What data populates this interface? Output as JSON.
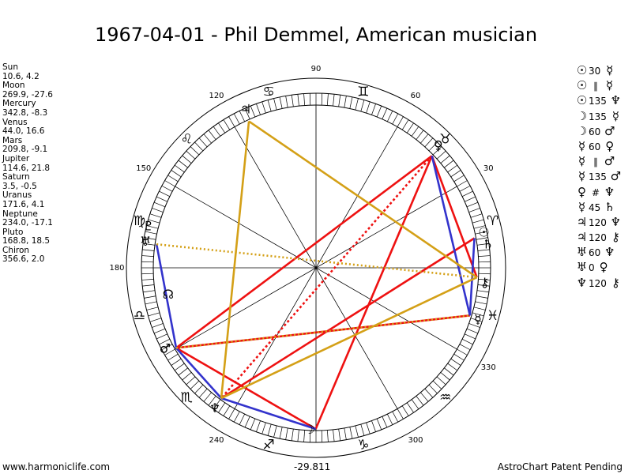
{
  "title": "1967-04-01 - Phil Demmel, American musician",
  "planets": [
    {
      "name": "Sun",
      "coords": "10.6, 4.2"
    },
    {
      "name": "Moon",
      "coords": "269.9, -27.6"
    },
    {
      "name": "Mercury",
      "coords": "342.8, -8.3"
    },
    {
      "name": "Venus",
      "coords": "44.0, 16.6"
    },
    {
      "name": "Mars",
      "coords": "209.8, -9.1"
    },
    {
      "name": "Jupiter",
      "coords": "114.6, 21.8"
    },
    {
      "name": "Saturn",
      "coords": "3.5, -0.5"
    },
    {
      "name": "Uranus",
      "coords": "171.6, 4.1"
    },
    {
      "name": "Neptune",
      "coords": "234.0, -17.1"
    },
    {
      "name": "Pluto",
      "coords": "168.8, 18.5"
    },
    {
      "name": "Chiron",
      "coords": "356.6, 2.0"
    }
  ],
  "aspects": [
    {
      "g1": "☉",
      "sym": "",
      "ang": "30",
      "g2": "☿"
    },
    {
      "g1": "☉",
      "sym": "∥",
      "ang": "",
      "g2": "☿"
    },
    {
      "g1": "☉",
      "sym": "",
      "ang": "135",
      "g2": "♆"
    },
    {
      "g1": "☽",
      "sym": "",
      "ang": "135",
      "g2": "☿"
    },
    {
      "g1": "☽",
      "sym": "",
      "ang": "60",
      "g2": "♂"
    },
    {
      "g1": "☿",
      "sym": "",
      "ang": "60",
      "g2": "♀"
    },
    {
      "g1": "☿",
      "sym": "∥",
      "ang": "",
      "g2": "♂"
    },
    {
      "g1": "☿",
      "sym": "",
      "ang": "135",
      "g2": "♂"
    },
    {
      "g1": "♀",
      "sym": "#",
      "ang": "",
      "g2": "♆"
    },
    {
      "g1": "☿",
      "sym": "",
      "ang": "45",
      "g2": "♄"
    },
    {
      "g1": "♃",
      "sym": "",
      "ang": "120",
      "g2": "♆"
    },
    {
      "g1": "♃",
      "sym": "",
      "ang": "120",
      "g2": "⚷"
    },
    {
      "g1": "♅",
      "sym": "",
      "ang": "60",
      "g2": "♆"
    },
    {
      "g1": "♅",
      "sym": "",
      "ang": "0",
      "g2": "♀"
    },
    {
      "g1": "♆",
      "sym": "",
      "ang": "120",
      "g2": "⚷"
    }
  ],
  "degree_labels": [
    "30",
    "60",
    "90",
    "120",
    "150",
    "180",
    "240",
    "300",
    "330"
  ],
  "signs": [
    "♈",
    "♉",
    "♊",
    "♋",
    "♌",
    "♍",
    "♎",
    "♏",
    "♐",
    "♑",
    "♒",
    "♓"
  ],
  "planet_glyphs": {
    "Sun": "☉",
    "Moon": "☽",
    "Mercury": "☿",
    "Venus": "♀",
    "Mars": "♂",
    "Jupiter": "♃",
    "Saturn": "♄",
    "Uranus": "♅",
    "Neptune": "♆",
    "Pluto": "♇",
    "Chiron": "⚷"
  },
  "node_glyph": "☊",
  "colors": {
    "harmonious": "#3333cc",
    "tense": "#ee1111",
    "minor": "#d4a017",
    "grid": "#000000"
  },
  "footer_left": "www.harmoniclife.com",
  "footer_right": "AstroChart Patent Pending",
  "bottom_readout": "-29.811"
}
